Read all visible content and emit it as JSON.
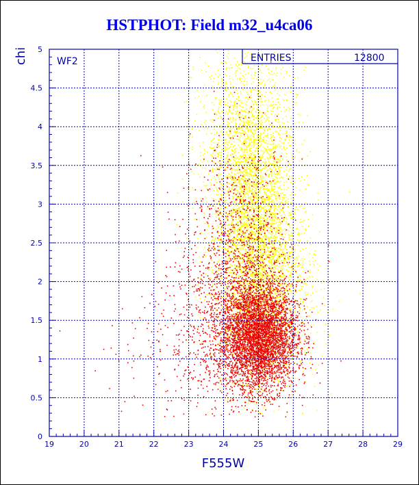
{
  "title": "HSTPHOT: Field m32_u4ca06",
  "chart_data": {
    "type": "scatter",
    "panel_label": "WF2",
    "entries_label": "ENTRIES",
    "entries_value": "12800",
    "xlabel": "F555W",
    "ylabel": "chi",
    "xlim": [
      19,
      29
    ],
    "ylim": [
      0,
      5
    ],
    "xticks": [
      "19",
      "20",
      "21",
      "22",
      "23",
      "24",
      "25",
      "26",
      "27",
      "28",
      "29"
    ],
    "yticks": [
      "0",
      "0.5",
      "1",
      "1.5",
      "2",
      "2.5",
      "3",
      "3.5",
      "4",
      "4.5",
      "5"
    ],
    "grid": true,
    "colors": {
      "axis": "#0000aa",
      "series_yellow": "#ffff00",
      "series_red": "#ee0000",
      "title": "#0000ee"
    },
    "series": [
      {
        "color": "yellow",
        "clusters": [
          {
            "cx": 24.9,
            "cy": 2.6,
            "sx": 0.6,
            "sy": 0.9,
            "n": 3200
          },
          {
            "cx": 24.6,
            "cy": 3.8,
            "sx": 0.7,
            "sy": 0.7,
            "n": 1300
          },
          {
            "cx": 25.4,
            "cy": 1.8,
            "sx": 0.7,
            "sy": 0.6,
            "n": 800
          }
        ]
      },
      {
        "color": "red",
        "clusters": [
          {
            "cx": 25.0,
            "cy": 1.3,
            "sx": 0.55,
            "sy": 0.35,
            "n": 4200
          },
          {
            "cx": 24.5,
            "cy": 2.2,
            "sx": 0.7,
            "sy": 0.8,
            "n": 1200
          },
          {
            "cx": 23.5,
            "cy": 1.4,
            "sx": 0.8,
            "sy": 0.7,
            "n": 500
          },
          {
            "cx": 21.5,
            "cy": 1.0,
            "sx": 0.9,
            "sy": 0.35,
            "n": 40
          }
        ]
      }
    ]
  }
}
